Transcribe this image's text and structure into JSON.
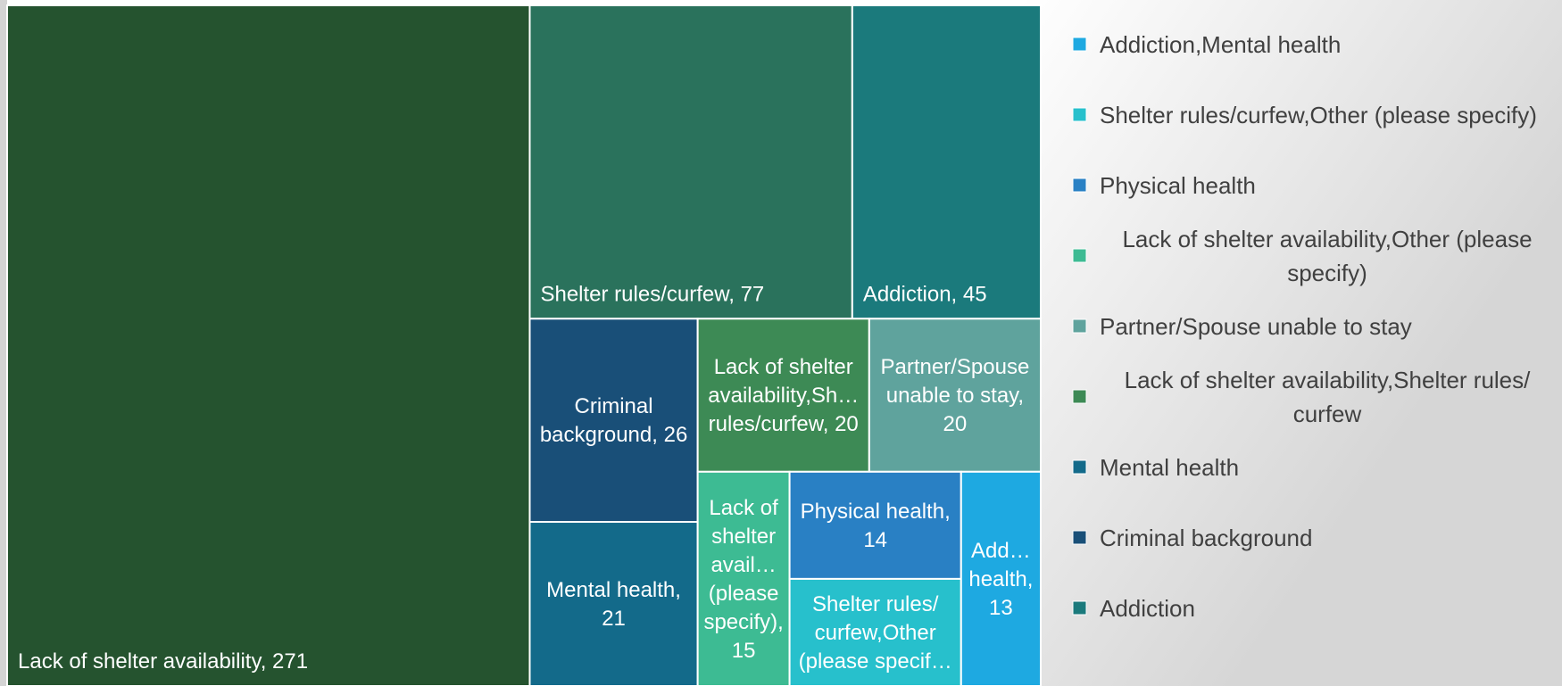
{
  "chart_data": {
    "type": "treemap",
    "categories": [
      "Lack of shelter availability",
      "Shelter rules/curfew",
      "Addiction",
      "Criminal background",
      "Mental health",
      "Lack of shelter availability,Shelter rules/curfew",
      "Partner/Spouse unable to stay ",
      "Lack of shelter availability,Other (please specify)",
      "Physical health",
      "Shelter rules/curfew,Other (please specify)",
      "Addiction,Mental health"
    ],
    "values": [
      271,
      77,
      45,
      26,
      21,
      20,
      20,
      15,
      14,
      14,
      13
    ],
    "colors": [
      "#25532f",
      "#2a725c",
      "#1b7a7c",
      "#194f78",
      "#136a8a",
      "#3d8a55",
      "#5fa39d",
      "#3dbb93",
      "#2980c4",
      "#27c0cc",
      "#1ea9e1"
    ]
  }
}
